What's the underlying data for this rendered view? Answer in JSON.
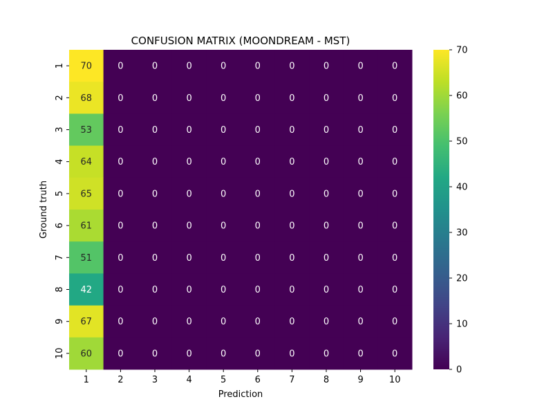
{
  "chart_data": {
    "type": "heatmap",
    "title": "CONFUSION MATRIX (MOONDREAM - MST)",
    "xlabel": "Prediction",
    "ylabel": "Ground truth",
    "x_categories": [
      "1",
      "2",
      "3",
      "4",
      "5",
      "6",
      "7",
      "8",
      "9",
      "10"
    ],
    "y_categories": [
      "1",
      "2",
      "3",
      "4",
      "5",
      "6",
      "7",
      "8",
      "9",
      "10"
    ],
    "values": [
      [
        70,
        0,
        0,
        0,
        0,
        0,
        0,
        0,
        0,
        0
      ],
      [
        68,
        0,
        0,
        0,
        0,
        0,
        0,
        0,
        0,
        0
      ],
      [
        53,
        0,
        0,
        0,
        0,
        0,
        0,
        0,
        0,
        0
      ],
      [
        64,
        0,
        0,
        0,
        0,
        0,
        0,
        0,
        0,
        0
      ],
      [
        65,
        0,
        0,
        0,
        0,
        0,
        0,
        0,
        0,
        0
      ],
      [
        61,
        0,
        0,
        0,
        0,
        0,
        0,
        0,
        0,
        0
      ],
      [
        51,
        0,
        0,
        0,
        0,
        0,
        0,
        0,
        0,
        0
      ],
      [
        42,
        0,
        0,
        0,
        0,
        0,
        0,
        0,
        0,
        0
      ],
      [
        67,
        0,
        0,
        0,
        0,
        0,
        0,
        0,
        0,
        0
      ],
      [
        60,
        0,
        0,
        0,
        0,
        0,
        0,
        0,
        0,
        0
      ]
    ],
    "colormap": "viridis",
    "vmin": 0,
    "vmax": 70,
    "colorbar_ticks": [
      0,
      10,
      20,
      30,
      40,
      50,
      60,
      70
    ],
    "colorbar_tick_labels": [
      "0",
      "10",
      "20",
      "30",
      "40",
      "50",
      "60",
      "70"
    ],
    "colorbar_placement": "right",
    "grid": false
  }
}
